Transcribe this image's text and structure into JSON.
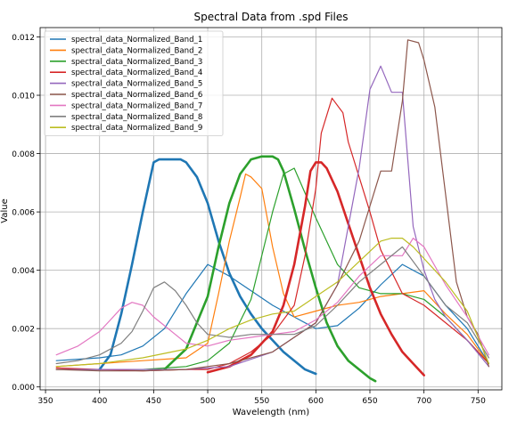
{
  "chart_data": {
    "type": "line",
    "title": "Spectral Data from .spd Files",
    "xlabel": "Wavelength (nm)",
    "ylabel": "Value",
    "xlim": [
      345,
      772
    ],
    "ylim": [
      -0.0001,
      0.01232
    ],
    "xticks": [
      350,
      400,
      450,
      500,
      550,
      600,
      650,
      700,
      750
    ],
    "xtick_labels": [
      "350",
      "400",
      "450",
      "500",
      "550",
      "600",
      "650",
      "700",
      "750"
    ],
    "yticks": [
      0,
      0.002,
      0.004,
      0.006,
      0.008,
      0.01,
      0.012
    ],
    "ytick_labels": [
      "0.000",
      "0.002",
      "0.004",
      "0.006",
      "0.008",
      "0.010",
      "0.012"
    ],
    "grid": true,
    "legend_position": "upper-left",
    "series": [
      {
        "name": "spectral_data_Normalized_Band_1",
        "color": "#1f77b4",
        "segments": [
          {
            "width": 1.2,
            "x": [
              360,
              380,
              400,
              420,
              440,
              460,
              480,
              500,
              520,
              540,
              560,
              580,
              600,
              620,
              640,
              660,
              680,
              700,
              720,
              740,
              760
            ],
            "y": [
              0.0009,
              0.00095,
              0.001,
              0.0011,
              0.0014,
              0.002,
              0.0032,
              0.0042,
              0.0038,
              0.0033,
              0.0028,
              0.0024,
              0.002,
              0.0021,
              0.0027,
              0.0035,
              0.0042,
              0.0038,
              0.0028,
              0.002,
              0.0008
            ]
          },
          {
            "width": 2.6,
            "x": [
              400,
              410,
              420,
              430,
              440,
              450,
              455,
              465,
              475,
              480,
              490,
              500,
              510,
              520,
              530,
              540,
              550,
              560,
              570,
              580,
              590,
              600
            ],
            "y": [
              0.0006,
              0.0011,
              0.0025,
              0.0042,
              0.006,
              0.0077,
              0.0078,
              0.0078,
              0.0078,
              0.0077,
              0.0072,
              0.0063,
              0.005,
              0.0039,
              0.0031,
              0.0025,
              0.002,
              0.0016,
              0.0012,
              0.0009,
              0.0006,
              0.00045
            ]
          }
        ]
      },
      {
        "name": "spectral_data_Normalized_Band_2",
        "color": "#ff7f0e",
        "segments": [
          {
            "width": 1.2,
            "x": [
              360,
              400,
              440,
              480,
              500,
              510,
              520,
              530,
              535,
              540,
              550,
              560,
              570,
              580,
              600,
              620,
              640,
              660,
              680,
              700,
              720,
              740,
              760
            ],
            "y": [
              0.0007,
              0.0008,
              0.0009,
              0.001,
              0.0015,
              0.0032,
              0.005,
              0.0065,
              0.0073,
              0.0072,
              0.0068,
              0.0048,
              0.0032,
              0.0024,
              0.0026,
              0.0028,
              0.0029,
              0.0031,
              0.0032,
              0.0033,
              0.0025,
              0.0018,
              0.0008
            ]
          }
        ]
      },
      {
        "name": "spectral_data_Normalized_Band_3",
        "color": "#2ca02c",
        "segments": [
          {
            "width": 1.2,
            "x": [
              360,
              400,
              440,
              480,
              500,
              520,
              540,
              560,
              570,
              580,
              600,
              620,
              640,
              660,
              680,
              700,
              720,
              740,
              760
            ],
            "y": [
              0.0006,
              0.0006,
              0.0006,
              0.0007,
              0.0009,
              0.0015,
              0.003,
              0.006,
              0.0073,
              0.0075,
              0.0058,
              0.0042,
              0.0034,
              0.0032,
              0.0032,
              0.003,
              0.0024,
              0.0016,
              0.0008
            ]
          },
          {
            "width": 2.6,
            "x": [
              460,
              480,
              500,
              510,
              520,
              530,
              540,
              550,
              560,
              565,
              570,
              580,
              590,
              600,
              610,
              620,
              630,
              640,
              650,
              655
            ],
            "y": [
              0.0006,
              0.0013,
              0.0031,
              0.0048,
              0.0063,
              0.0073,
              0.0078,
              0.0079,
              0.0079,
              0.0078,
              0.0074,
              0.0061,
              0.0047,
              0.0034,
              0.0022,
              0.0014,
              0.0009,
              0.0006,
              0.0003,
              0.0002
            ]
          }
        ]
      },
      {
        "name": "spectral_data_Normalized_Band_4",
        "color": "#d62728",
        "segments": [
          {
            "width": 1.2,
            "x": [
              360,
              400,
              440,
              480,
              500,
              520,
              540,
              560,
              580,
              590,
              600,
              605,
              615,
              625,
              630,
              640,
              650,
              660,
              680,
              700,
              720,
              740,
              760
            ],
            "y": [
              0.00065,
              0.0006,
              0.00055,
              0.0006,
              0.0006,
              0.0008,
              0.0012,
              0.0018,
              0.0028,
              0.0045,
              0.0068,
              0.0087,
              0.0099,
              0.0094,
              0.0084,
              0.0072,
              0.006,
              0.0047,
              0.0032,
              0.0028,
              0.0022,
              0.0016,
              0.0008
            ]
          },
          {
            "width": 2.6,
            "x": [
              500,
              520,
              540,
              560,
              570,
              580,
              590,
              595,
              600,
              605,
              610,
              620,
              630,
              640,
              650,
              660,
              670,
              680,
              690,
              700
            ],
            "y": [
              0.0005,
              0.0007,
              0.0011,
              0.0019,
              0.0028,
              0.0042,
              0.0062,
              0.0074,
              0.0077,
              0.0077,
              0.0075,
              0.0067,
              0.0056,
              0.0045,
              0.0034,
              0.0025,
              0.0018,
              0.0012,
              0.0008,
              0.0004
            ]
          }
        ]
      },
      {
        "name": "spectral_data_Normalized_Band_5",
        "color": "#9467bd",
        "segments": [
          {
            "width": 1.2,
            "x": [
              360,
              400,
              440,
              480,
              520,
              560,
              600,
              620,
              630,
              640,
              650,
              660,
              670,
              680,
              690,
              700,
              710,
              720,
              740,
              760
            ],
            "y": [
              0.0006,
              0.0006,
              0.0006,
              0.0006,
              0.0007,
              0.0012,
              0.0022,
              0.0035,
              0.0055,
              0.0075,
              0.0102,
              0.011,
              0.0101,
              0.0101,
              0.0055,
              0.004,
              0.003,
              0.0024,
              0.0016,
              0.0007
            ]
          }
        ]
      },
      {
        "name": "spectral_data_Normalized_Band_6",
        "color": "#8c564b",
        "segments": [
          {
            "width": 1.2,
            "x": [
              360,
              400,
              440,
              480,
              520,
              560,
              600,
              620,
              640,
              650,
              660,
              670,
              680,
              685,
              695,
              700,
              710,
              720,
              730,
              740,
              750,
              760
            ],
            "y": [
              0.0006,
              0.00055,
              0.00055,
              0.0006,
              0.0008,
              0.0012,
              0.0022,
              0.0035,
              0.005,
              0.0062,
              0.0074,
              0.0074,
              0.0098,
              0.0119,
              0.0118,
              0.0112,
              0.0096,
              0.0066,
              0.0036,
              0.0024,
              0.0018,
              0.0007
            ]
          }
        ]
      },
      {
        "name": "spectral_data_Normalized_Band_7",
        "color": "#e377c2",
        "segments": [
          {
            "width": 1.2,
            "x": [
              360,
              380,
              400,
              410,
              420,
              430,
              440,
              450,
              460,
              470,
              480,
              500,
              520,
              540,
              560,
              580,
              600,
              620,
              640,
              660,
              680,
              690,
              700,
              720,
              740,
              760
            ],
            "y": [
              0.0011,
              0.0014,
              0.0019,
              0.0023,
              0.0027,
              0.0029,
              0.0028,
              0.0024,
              0.0021,
              0.0018,
              0.0015,
              0.0014,
              0.0016,
              0.0017,
              0.0018,
              0.0019,
              0.0023,
              0.0029,
              0.0038,
              0.0045,
              0.0045,
              0.0051,
              0.0048,
              0.0035,
              0.0024,
              0.0011
            ]
          }
        ]
      },
      {
        "name": "spectral_data_Normalized_Band_8",
        "color": "#7f7f7f",
        "segments": [
          {
            "width": 1.2,
            "x": [
              360,
              380,
              400,
              420,
              430,
              440,
              450,
              460,
              470,
              480,
              490,
              500,
              520,
              540,
              560,
              580,
              600,
              620,
              640,
              660,
              680,
              700,
              720,
              740,
              760
            ],
            "y": [
              0.0008,
              0.0009,
              0.0011,
              0.0015,
              0.0019,
              0.0026,
              0.0034,
              0.0036,
              0.0033,
              0.0028,
              0.0022,
              0.0018,
              0.0017,
              0.0018,
              0.0018,
              0.0018,
              0.0021,
              0.0028,
              0.0036,
              0.0042,
              0.0048,
              0.0038,
              0.0028,
              0.0022,
              0.001
            ]
          }
        ]
      },
      {
        "name": "spectral_data_Normalized_Band_9",
        "color": "#bcbd22",
        "segments": [
          {
            "width": 1.2,
            "x": [
              360,
              400,
              440,
              480,
              500,
              520,
              540,
              560,
              580,
              600,
              620,
              640,
              660,
              670,
              680,
              690,
              700,
              720,
              740,
              760
            ],
            "y": [
              0.0007,
              0.0008,
              0.001,
              0.0013,
              0.0016,
              0.002,
              0.0023,
              0.0025,
              0.0026,
              0.0031,
              0.0036,
              0.0043,
              0.005,
              0.0051,
              0.0051,
              0.0048,
              0.0044,
              0.0036,
              0.0026,
              0.0008
            ]
          }
        ]
      }
    ]
  }
}
